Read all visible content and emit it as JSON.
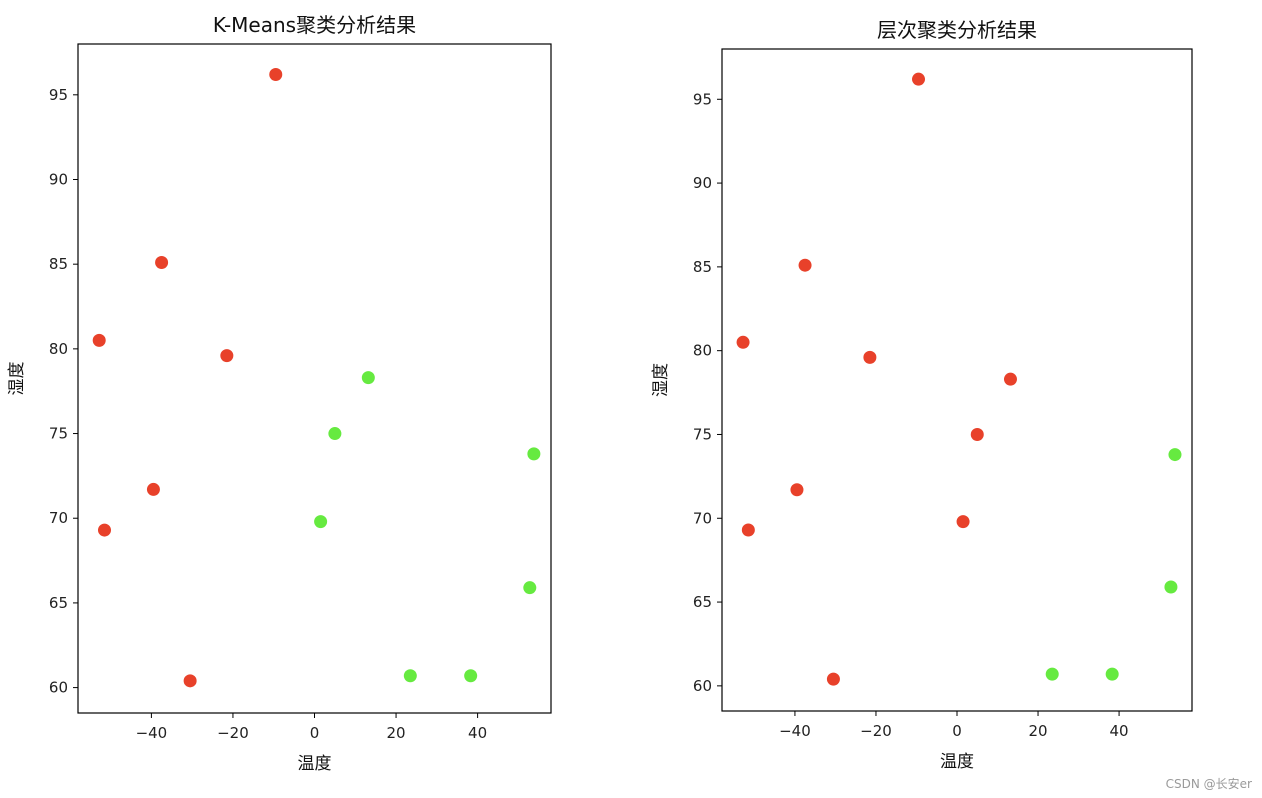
{
  "colors": {
    "red": "#e8412a",
    "green": "#66ea40"
  },
  "watermark": "CSDN @长安er",
  "chart_data": [
    {
      "type": "scatter",
      "title": "K-Means聚类分析结果",
      "xlabel": "温度",
      "ylabel": "湿度",
      "xlim": [
        -58,
        58
      ],
      "ylim": [
        58.5,
        98
      ],
      "xticks": [
        -40,
        -20,
        0,
        20,
        40
      ],
      "yticks": [
        60,
        65,
        70,
        75,
        80,
        85,
        90,
        95
      ],
      "xtick_labels": [
        "−40",
        "−20",
        "0",
        "20",
        "40"
      ],
      "ytick_labels": [
        "60",
        "65",
        "70",
        "75",
        "80",
        "85",
        "90",
        "95"
      ],
      "points": [
        {
          "x": -9.5,
          "y": 96.2,
          "cluster": "red"
        },
        {
          "x": -37.5,
          "y": 85.1,
          "cluster": "red"
        },
        {
          "x": -52.8,
          "y": 80.5,
          "cluster": "red"
        },
        {
          "x": -21.5,
          "y": 79.6,
          "cluster": "red"
        },
        {
          "x": -39.5,
          "y": 71.7,
          "cluster": "red"
        },
        {
          "x": -51.5,
          "y": 69.3,
          "cluster": "red"
        },
        {
          "x": -30.5,
          "y": 60.4,
          "cluster": "red"
        },
        {
          "x": 13.2,
          "y": 78.3,
          "cluster": "green"
        },
        {
          "x": 5.0,
          "y": 75.0,
          "cluster": "green"
        },
        {
          "x": 53.8,
          "y": 73.8,
          "cluster": "green"
        },
        {
          "x": 1.5,
          "y": 69.8,
          "cluster": "green"
        },
        {
          "x": 52.8,
          "y": 65.9,
          "cluster": "green"
        },
        {
          "x": 23.5,
          "y": 60.7,
          "cluster": "green"
        },
        {
          "x": 38.3,
          "y": 60.7,
          "cluster": "green"
        }
      ]
    },
    {
      "type": "scatter",
      "title": "层次聚类分析结果",
      "xlabel": "温度",
      "ylabel": "湿度",
      "xlim": [
        -58,
        58
      ],
      "ylim": [
        58.5,
        98
      ],
      "xticks": [
        -40,
        -20,
        0,
        20,
        40
      ],
      "yticks": [
        60,
        65,
        70,
        75,
        80,
        85,
        90,
        95
      ],
      "xtick_labels": [
        "−40",
        "−20",
        "0",
        "20",
        "40"
      ],
      "ytick_labels": [
        "60",
        "65",
        "70",
        "75",
        "80",
        "85",
        "90",
        "95"
      ],
      "points": [
        {
          "x": -9.5,
          "y": 96.2,
          "cluster": "red"
        },
        {
          "x": -37.5,
          "y": 85.1,
          "cluster": "red"
        },
        {
          "x": -52.8,
          "y": 80.5,
          "cluster": "red"
        },
        {
          "x": -21.5,
          "y": 79.6,
          "cluster": "red"
        },
        {
          "x": -39.5,
          "y": 71.7,
          "cluster": "red"
        },
        {
          "x": -51.5,
          "y": 69.3,
          "cluster": "red"
        },
        {
          "x": -30.5,
          "y": 60.4,
          "cluster": "red"
        },
        {
          "x": 13.2,
          "y": 78.3,
          "cluster": "red"
        },
        {
          "x": 5.0,
          "y": 75.0,
          "cluster": "red"
        },
        {
          "x": 1.5,
          "y": 69.8,
          "cluster": "red"
        },
        {
          "x": 53.8,
          "y": 73.8,
          "cluster": "green"
        },
        {
          "x": 52.8,
          "y": 65.9,
          "cluster": "green"
        },
        {
          "x": 23.5,
          "y": 60.7,
          "cluster": "green"
        },
        {
          "x": 38.3,
          "y": 60.7,
          "cluster": "green"
        }
      ]
    }
  ]
}
